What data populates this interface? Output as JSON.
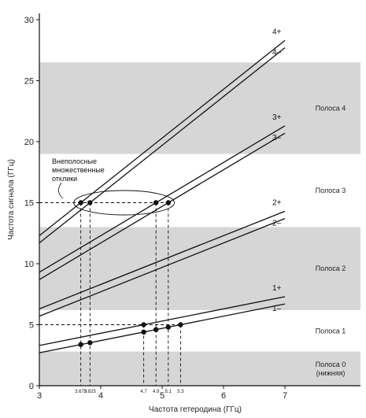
{
  "chart_data": {
    "type": "line",
    "title": "",
    "xlabel": "Частота гетеродина (ГГц)",
    "ylabel": "Частота сигнала (ГГц)",
    "xlim": [
      3,
      7.5
    ],
    "ylim": [
      0,
      31
    ],
    "x_ticks": [
      3,
      4,
      5,
      6,
      7
    ],
    "y_ticks": [
      0,
      5,
      10,
      15,
      20,
      25,
      30
    ],
    "grid": false,
    "bands": [
      {
        "label_lines": [
          "Полоса 0",
          "(нижняя)"
        ],
        "y_range": [
          0,
          2.8
        ],
        "shaded": true
      },
      {
        "label_lines": [
          "Полоса 1"
        ],
        "y_range": [
          2.8,
          6.2
        ],
        "shaded": false
      },
      {
        "label_lines": [
          "Полоса 2"
        ],
        "y_range": [
          6.2,
          13.0
        ],
        "shaded": true
      },
      {
        "label_lines": [
          "Полоса 3"
        ],
        "y_range": [
          13.0,
          19.0
        ],
        "shaded": false
      },
      {
        "label_lines": [
          "Полоса 4"
        ],
        "y_range": [
          19.0,
          26.5
        ],
        "shaded": true
      }
    ],
    "series": [
      {
        "name": "4+",
        "x": [
          3,
          7
        ],
        "y": [
          12.3,
          28.3
        ]
      },
      {
        "name": "4–",
        "x": [
          3,
          7
        ],
        "y": [
          11.7,
          27.7
        ]
      },
      {
        "name": "3+",
        "x": [
          3,
          7
        ],
        "y": [
          9.3,
          21.3
        ]
      },
      {
        "name": "3–",
        "x": [
          3,
          7
        ],
        "y": [
          8.7,
          20.7
        ]
      },
      {
        "name": "2+",
        "x": [
          3,
          7
        ],
        "y": [
          6.3,
          14.3
        ]
      },
      {
        "name": "2–",
        "x": [
          3,
          7
        ],
        "y": [
          5.7,
          13.7
        ]
      },
      {
        "name": "1+",
        "x": [
          3,
          7
        ],
        "y": [
          3.3,
          7.3
        ]
      },
      {
        "name": "1–",
        "x": [
          3,
          7
        ],
        "y": [
          2.7,
          6.7
        ]
      }
    ],
    "points": [
      {
        "x": 3.675,
        "y": 15.0
      },
      {
        "x": 3.825,
        "y": 15.0
      },
      {
        "x": 4.9,
        "y": 15.0
      },
      {
        "x": 5.1,
        "y": 15.0
      },
      {
        "x": 3.675,
        "y": 3.375
      },
      {
        "x": 3.825,
        "y": 3.525
      },
      {
        "x": 4.7,
        "y": 4.4
      },
      {
        "x": 4.7,
        "y": 5.0
      },
      {
        "x": 4.9,
        "y": 4.6
      },
      {
        "x": 5.1,
        "y": 4.8
      },
      {
        "x": 5.3,
        "y": 5.0
      }
    ],
    "drop_lines": [
      {
        "x": 3.675,
        "y": 15.0,
        "label": "3.675"
      },
      {
        "x": 3.825,
        "y": 15.0,
        "label": "3.825"
      },
      {
        "x": 4.7,
        "y": 5.0,
        "label": "4.7"
      },
      {
        "x": 4.9,
        "y": 15.0,
        "label": "4.9"
      },
      {
        "x": 5.1,
        "y": 15.0,
        "label": "5.1"
      },
      {
        "x": 5.3,
        "y": 5.0,
        "label": "5.3"
      }
    ],
    "h_ref_lines": [
      {
        "y": 15.0,
        "x_end": 5.1
      },
      {
        "y": 5.0,
        "x_end": 5.3
      }
    ],
    "annotation": {
      "lines": [
        "Внеполосные",
        "множественные",
        "отклики"
      ],
      "ellipse_center": [
        4.38,
        15.0
      ],
      "ellipse_radius_x": 0.82,
      "ellipse_radius_y": 1.0
    }
  }
}
